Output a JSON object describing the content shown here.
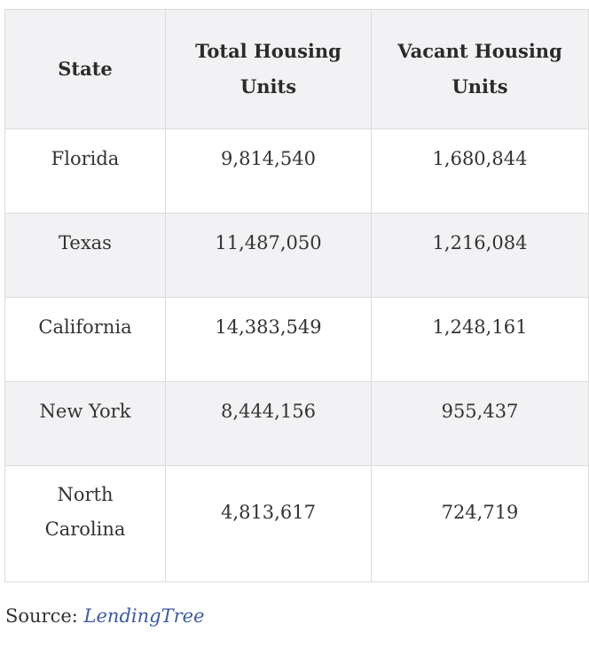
{
  "table": {
    "headers": [
      "State",
      "Total Housing Units",
      "Vacant Housing Units"
    ],
    "rows": [
      {
        "state": "Florida",
        "total": "9,814,540",
        "vacant": "1,680,844"
      },
      {
        "state": "Texas",
        "total": "11,487,050",
        "vacant": "1,216,084"
      },
      {
        "state": "California",
        "total": "14,383,549",
        "vacant": "1,248,161"
      },
      {
        "state": "New York",
        "total": "8,444,156",
        "vacant": "955,437"
      },
      {
        "state": "North Carolina",
        "total": "4,813,617",
        "vacant": "724,719"
      }
    ]
  },
  "source": {
    "label": "Source:",
    "link_text": "LendingTree"
  },
  "colors": {
    "header_bg": "#f2f2f4",
    "stripe_bg": "#f2f2f4",
    "border": "#dcdcdc",
    "link": "#3c5aa8"
  }
}
